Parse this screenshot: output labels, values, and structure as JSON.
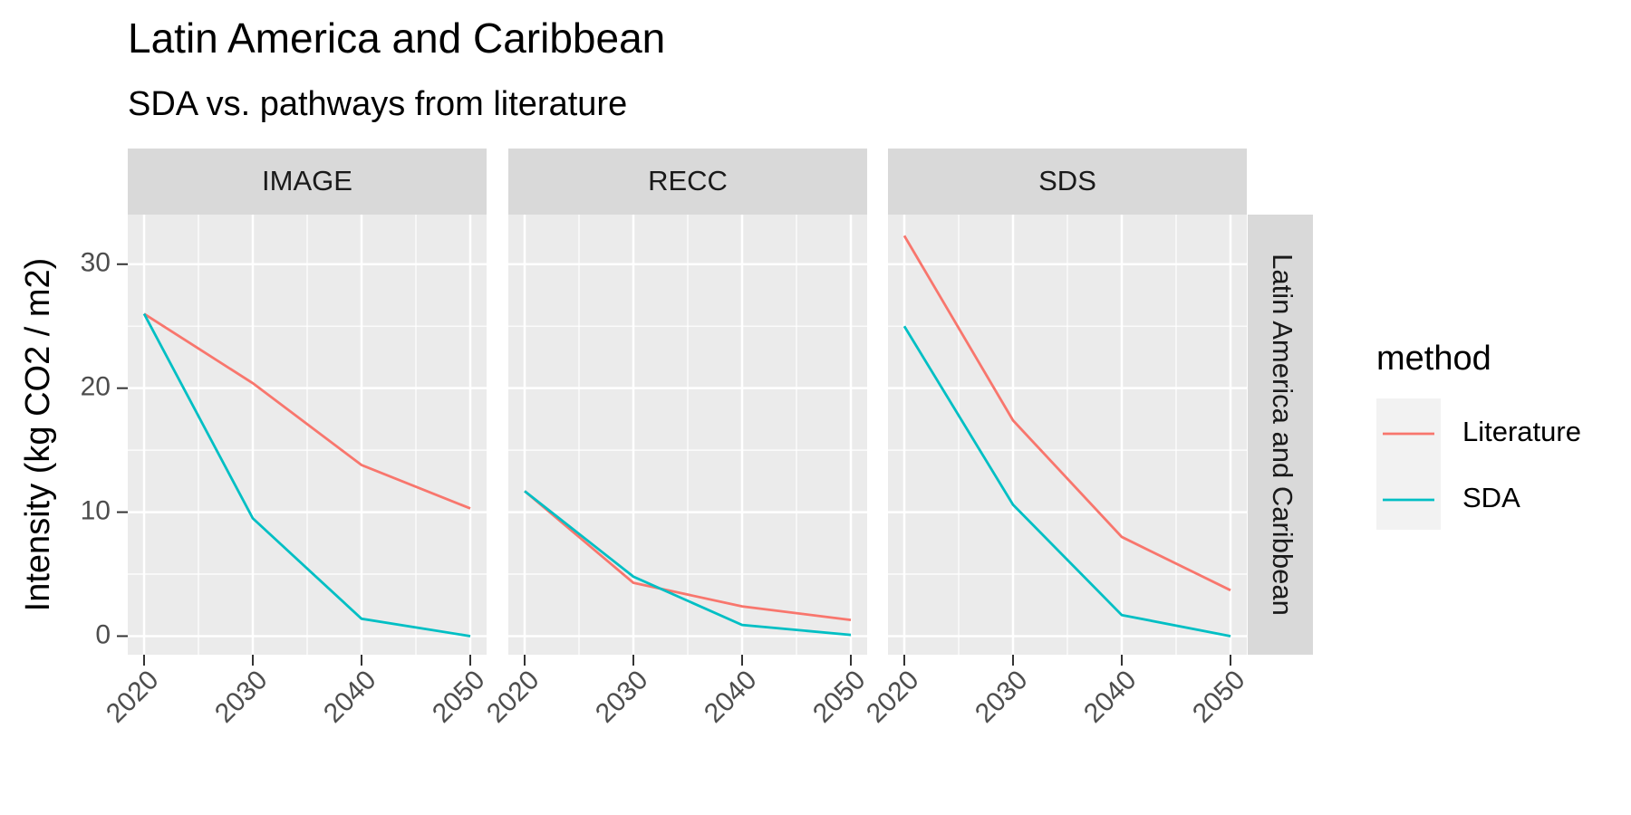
{
  "chart_data": {
    "type": "line",
    "title": "Latin America and Caribbean",
    "subtitle": "SDA vs. pathways from literature",
    "y_label": "Intensity (kg CO2 / m2)",
    "row_label": "Latin America and Caribbean",
    "legend_title": "method",
    "x": [
      2020,
      2030,
      2040,
      2050
    ],
    "xlim": [
      2018.5,
      2051.5
    ],
    "xticks": [
      2020,
      2030,
      2040,
      2050
    ],
    "xminor": [
      2025,
      2035,
      2045
    ],
    "ylim": [
      -1.5,
      34
    ],
    "yticks": [
      0,
      10,
      20,
      30
    ],
    "yminor": [
      5,
      15,
      25
    ],
    "grid": true,
    "panels": [
      {
        "label": "IMAGE",
        "series": [
          {
            "name": "Literature",
            "color": "#F8766D",
            "values": [
              26,
              20.4,
              13.8,
              10.3
            ]
          },
          {
            "name": "SDA",
            "color": "#00BFC4",
            "values": [
              26,
              9.5,
              1.4,
              0
            ]
          }
        ]
      },
      {
        "label": "RECC",
        "series": [
          {
            "name": "Literature",
            "color": "#F8766D",
            "values": [
              11.7,
              4.3,
              2.4,
              1.3
            ]
          },
          {
            "name": "SDA",
            "color": "#00BFC4",
            "values": [
              11.7,
              4.8,
              0.9,
              0.1
            ]
          }
        ]
      },
      {
        "label": "SDS",
        "series": [
          {
            "name": "Literature",
            "color": "#F8766D",
            "values": [
              32.3,
              17.4,
              8.0,
              3.7
            ]
          },
          {
            "name": "SDA",
            "color": "#00BFC4",
            "values": [
              25,
              10.6,
              1.7,
              0
            ]
          }
        ]
      }
    ]
  }
}
